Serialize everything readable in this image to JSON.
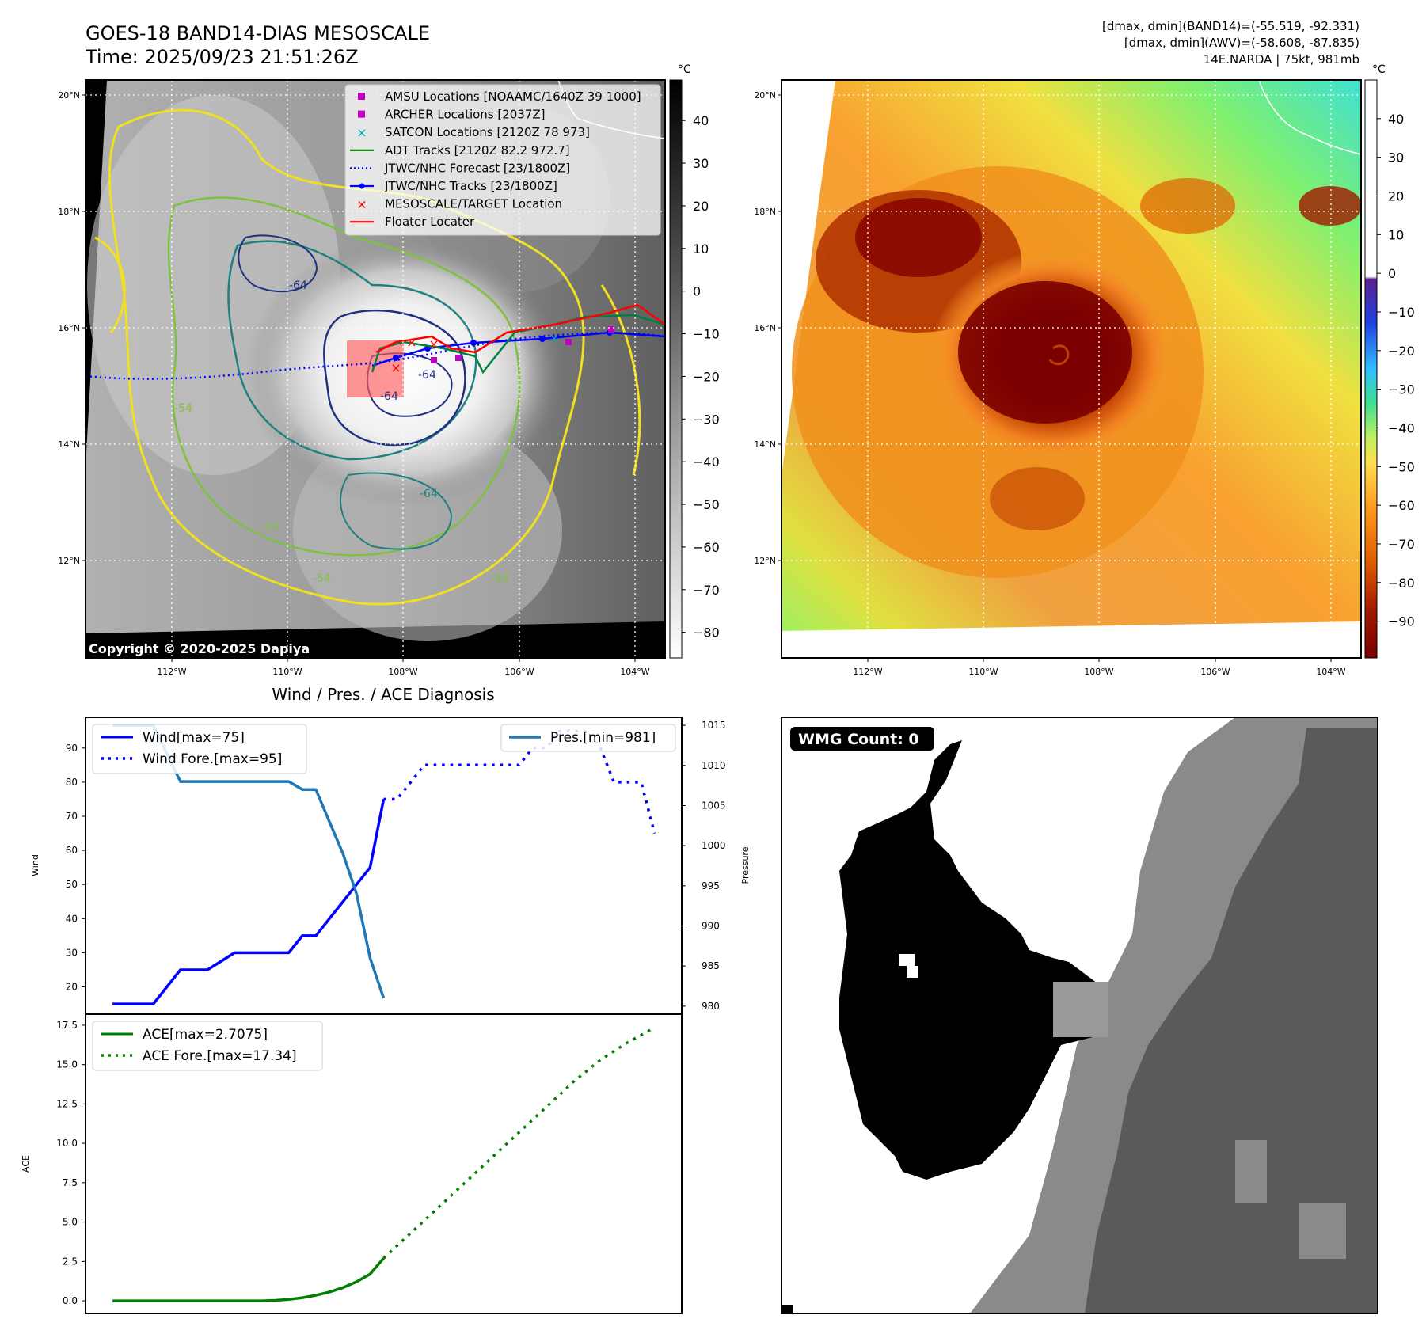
{
  "header": {
    "title_line1": "GOES-18 BAND14-DIAS MESOSCALE",
    "title_line2": "Time: 2025/09/23 21:51:26Z",
    "info_line1": "[dmax, dmin](BAND14)=(-55.519, -92.331)",
    "info_line2": "[dmax, dmin](AWV)=(-58.608, -87.835)",
    "info_line3": "14E.NARDA | 75kt, 981mb"
  },
  "map_axes": {
    "lat_ticks": [
      "20°N",
      "18°N",
      "16°N",
      "14°N",
      "12°N"
    ],
    "lon_ticks": [
      "112°W",
      "110°W",
      "108°W",
      "106°W",
      "104°W"
    ]
  },
  "colorbar_ir": {
    "unit": "°C",
    "ticks": [
      "40",
      "30",
      "20",
      "10",
      "0",
      "−10",
      "−20",
      "−30",
      "−40",
      "−50",
      "−60",
      "−70",
      "−80"
    ]
  },
  "colorbar_awv": {
    "unit": "°C",
    "ticks": [
      "40",
      "30",
      "20",
      "10",
      "0",
      "−10",
      "−20",
      "−30",
      "−40",
      "−50",
      "−60",
      "−70",
      "−80",
      "−90"
    ]
  },
  "legend_map": [
    {
      "label": "AMSU Locations [NOAAMC/1640Z 39 1000]",
      "color": "#c000c0",
      "kind": "square"
    },
    {
      "label": "ARCHER Locations [2037Z]",
      "color": "#c000c0",
      "kind": "square"
    },
    {
      "label": "SATCON Locations [2120Z 78 973]",
      "color": "#00b0b0",
      "kind": "x"
    },
    {
      "label": "ADT Tracks [2120Z 82.2 972.7]",
      "color": "#008000",
      "kind": "line"
    },
    {
      "label": "JTWC/NHC Forecast [23/1800Z]",
      "color": "#0000ff",
      "kind": "dotted"
    },
    {
      "label": "JTWC/NHC Tracks [23/1800Z]",
      "color": "#0000ff",
      "kind": "line-dot"
    },
    {
      "label": "MESOSCALE/TARGET Location",
      "color": "#ff0000",
      "kind": "x"
    },
    {
      "label": "Floater Locater",
      "color": "#ff0000",
      "kind": "line"
    }
  ],
  "copyright": "Copyright © 2020-2025 Dapiya",
  "contour_labels": [
    "-64",
    "-64",
    "-64",
    "-54",
    "-54",
    "-54",
    "-64",
    "-54"
  ],
  "wmg": {
    "label": "WMG Count: 0"
  },
  "chart_data": [
    {
      "type": "line",
      "title": "Wind / Pres. / ACE Diagnosis",
      "ylabel": "Wind",
      "ylabel_right": "Pressure",
      "ylim": [
        12,
        99
      ],
      "ylim_right": [
        979,
        1016
      ],
      "yticks": [
        20,
        30,
        40,
        50,
        60,
        70,
        80,
        90
      ],
      "yticks_right": [
        980,
        985,
        990,
        995,
        1000,
        1005,
        1010,
        1015
      ],
      "legend_left": [
        "Wind[max=75]",
        "Wind Fore.[max=95]"
      ],
      "legend_right": [
        "Pres.[min=981]"
      ],
      "series": [
        {
          "name": "Wind[max=75]",
          "color": "#0000ff",
          "style": "solid",
          "axis": "left",
          "x": [
            0,
            3,
            5,
            7,
            9,
            11,
            13,
            14,
            15,
            16,
            17,
            18,
            19,
            20
          ],
          "values": [
            15,
            15,
            25,
            25,
            30,
            30,
            30,
            35,
            35,
            40,
            45,
            50,
            55,
            75
          ]
        },
        {
          "name": "Wind Fore.[max=95]",
          "color": "#0000ff",
          "style": "dotted",
          "axis": "left",
          "x": [
            20,
            21,
            22,
            23,
            24,
            25,
            26,
            27,
            28,
            29,
            30,
            31,
            32,
            33,
            34,
            35,
            36,
            37,
            38,
            39,
            40
          ],
          "values": [
            75,
            75,
            80,
            85,
            85,
            85,
            85,
            85,
            85,
            85,
            85,
            90,
            90,
            95,
            95,
            95,
            90,
            80,
            80,
            80,
            65
          ]
        },
        {
          "name": "Pres.[min=981]",
          "color": "#1f77b4",
          "style": "solid",
          "axis": "right",
          "x": [
            0,
            3,
            5,
            7,
            9,
            11,
            13,
            14,
            15,
            16,
            17,
            18,
            19,
            20
          ],
          "values": [
            1015,
            1015,
            1008,
            1008,
            1008,
            1008,
            1008,
            1007,
            1007,
            1003,
            999,
            994,
            986,
            981
          ]
        }
      ],
      "xlim": [
        -2,
        42
      ]
    },
    {
      "type": "line",
      "ylabel": "ACE",
      "ylim": [
        -0.8,
        18.2
      ],
      "yticks": [
        "0.0",
        "2.5",
        "5.0",
        "7.5",
        "10.0",
        "12.5",
        "15.0",
        "17.5"
      ],
      "legend": [
        "ACE[max=2.7075]",
        "ACE Fore.[max=17.34]"
      ],
      "series": [
        {
          "name": "ACE[max=2.7075]",
          "color": "#008000",
          "style": "solid",
          "x": [
            0,
            5,
            10,
            11,
            12,
            13,
            14,
            15,
            16,
            17,
            18,
            19,
            20
          ],
          "values": [
            0,
            0,
            0,
            0,
            0.03,
            0.09,
            0.2,
            0.35,
            0.56,
            0.84,
            1.21,
            1.7,
            2.7075
          ]
        },
        {
          "name": "ACE Fore.[max=17.34]",
          "color": "#008000",
          "style": "dotted",
          "x": [
            20,
            22,
            24,
            26,
            28,
            30,
            32,
            34,
            36,
            38,
            40
          ],
          "values": [
            2.7075,
            4.3,
            5.9,
            7.5,
            9.1,
            10.7,
            12.3,
            13.9,
            15.3,
            16.4,
            17.34
          ]
        }
      ],
      "xlim": [
        -2,
        42
      ]
    }
  ]
}
